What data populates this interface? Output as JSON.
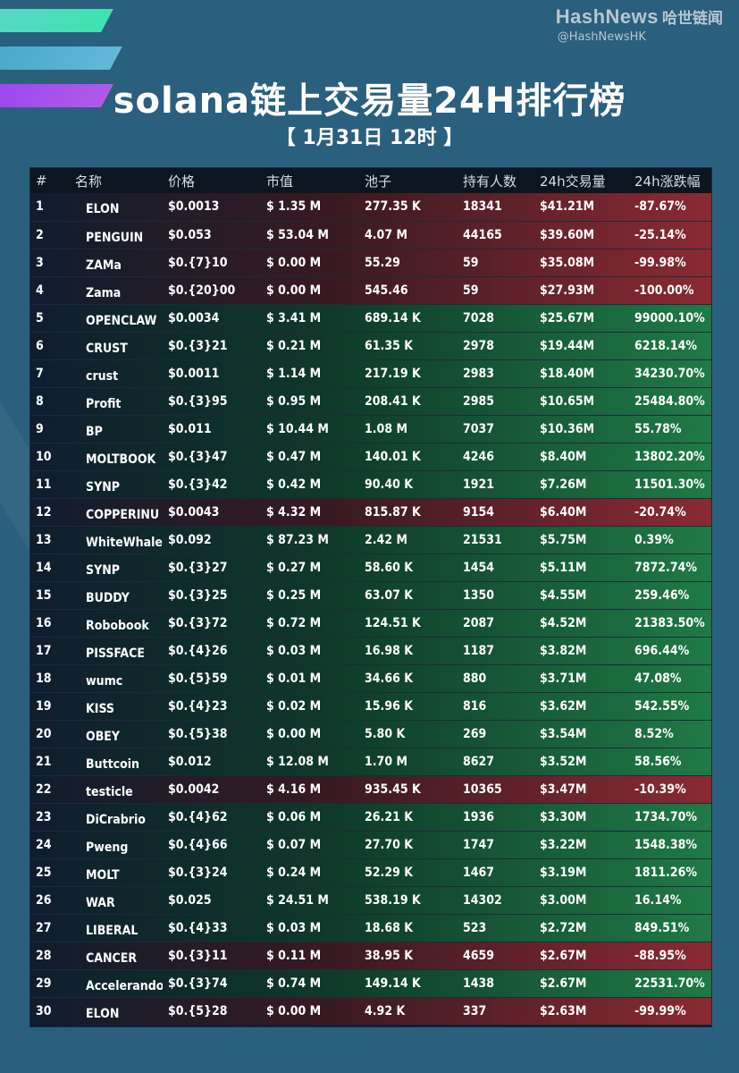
{
  "brand": {
    "name": "HashNews",
    "cn": "哈世链闻",
    "handle": "@HashNewsHK"
  },
  "title": "solana链上交易量24H排行榜",
  "subtitle": "【 1月31日  12时 】",
  "colors": {
    "background": "#2a5f7e",
    "table": "#0f1d2e",
    "down": "#8a2a33",
    "up": "#1f7a45"
  },
  "columns": [
    "#",
    "名称",
    "价格",
    "市值",
    "池子",
    "持有人数",
    "24h交易量",
    "24h涨跌幅"
  ],
  "rows": [
    {
      "rank": "1",
      "name": "ELON",
      "price": "$0.0013",
      "mcap": "$ 1.35 M",
      "pool": "277.35 K",
      "holders": "18341",
      "volume": "$41.21M",
      "change": "-87.67%",
      "dir": "down"
    },
    {
      "rank": "2",
      "name": "PENGUIN",
      "price": "$0.053",
      "mcap": "$ 53.04 M",
      "pool": "4.07 M",
      "holders": "44165",
      "volume": "$39.60M",
      "change": "-25.14%",
      "dir": "down"
    },
    {
      "rank": "3",
      "name": "ZAMa",
      "price": "$0.{7}10",
      "mcap": "$ 0.00 M",
      "pool": "55.29",
      "holders": "59",
      "volume": "$35.08M",
      "change": "-99.98%",
      "dir": "down"
    },
    {
      "rank": "4",
      "name": "Zama",
      "price": "$0.{20}00",
      "mcap": "$ 0.00 M",
      "pool": "545.46",
      "holders": "59",
      "volume": "$27.93M",
      "change": "-100.00%",
      "dir": "down"
    },
    {
      "rank": "5",
      "name": "OPENCLAW",
      "price": "$0.0034",
      "mcap": "$ 3.41 M",
      "pool": "689.14 K",
      "holders": "7028",
      "volume": "$25.67M",
      "change": "99000.10%",
      "dir": "up"
    },
    {
      "rank": "6",
      "name": "CRUST",
      "price": "$0.{3}21",
      "mcap": "$ 0.21 M",
      "pool": "61.35 K",
      "holders": "2978",
      "volume": "$19.44M",
      "change": "6218.14%",
      "dir": "up"
    },
    {
      "rank": "7",
      "name": "crust",
      "price": "$0.0011",
      "mcap": "$ 1.14 M",
      "pool": "217.19 K",
      "holders": "2983",
      "volume": "$18.40M",
      "change": "34230.70%",
      "dir": "up"
    },
    {
      "rank": "8",
      "name": "Profit",
      "price": "$0.{3}95",
      "mcap": "$ 0.95 M",
      "pool": "208.41 K",
      "holders": "2985",
      "volume": "$10.65M",
      "change": "25484.80%",
      "dir": "up"
    },
    {
      "rank": "9",
      "name": "BP",
      "price": "$0.011",
      "mcap": "$ 10.44 M",
      "pool": "1.08 M",
      "holders": "7037",
      "volume": "$10.36M",
      "change": "55.78%",
      "dir": "up"
    },
    {
      "rank": "10",
      "name": "MOLTBOOK",
      "price": "$0.{3}47",
      "mcap": "$ 0.47 M",
      "pool": "140.01 K",
      "holders": "4246",
      "volume": "$8.40M",
      "change": "13802.20%",
      "dir": "up"
    },
    {
      "rank": "11",
      "name": "SYNP",
      "price": "$0.{3}42",
      "mcap": "$ 0.42 M",
      "pool": "90.40 K",
      "holders": "1921",
      "volume": "$7.26M",
      "change": "11501.30%",
      "dir": "up"
    },
    {
      "rank": "12",
      "name": "COPPERINU",
      "price": "$0.0043",
      "mcap": "$ 4.32 M",
      "pool": "815.87 K",
      "holders": "9154",
      "volume": "$6.40M",
      "change": "-20.74%",
      "dir": "down"
    },
    {
      "rank": "13",
      "name": "WhiteWhale",
      "price": "$0.092",
      "mcap": "$ 87.23 M",
      "pool": "2.42 M",
      "holders": "21531",
      "volume": "$5.75M",
      "change": "0.39%",
      "dir": "up"
    },
    {
      "rank": "14",
      "name": "SYNP",
      "price": "$0.{3}27",
      "mcap": "$ 0.27 M",
      "pool": "58.60 K",
      "holders": "1454",
      "volume": "$5.11M",
      "change": "7872.74%",
      "dir": "up"
    },
    {
      "rank": "15",
      "name": "BUDDY",
      "price": "$0.{3}25",
      "mcap": "$ 0.25 M",
      "pool": "63.07 K",
      "holders": "1350",
      "volume": "$4.55M",
      "change": "259.46%",
      "dir": "up"
    },
    {
      "rank": "16",
      "name": "Robobook",
      "price": "$0.{3}72",
      "mcap": "$ 0.72 M",
      "pool": "124.51 K",
      "holders": "2087",
      "volume": "$4.52M",
      "change": "21383.50%",
      "dir": "up"
    },
    {
      "rank": "17",
      "name": "PISSFACE",
      "price": "$0.{4}26",
      "mcap": "$ 0.03 M",
      "pool": "16.98 K",
      "holders": "1187",
      "volume": "$3.82M",
      "change": "696.44%",
      "dir": "up"
    },
    {
      "rank": "18",
      "name": "wumc",
      "price": "$0.{5}59",
      "mcap": "$ 0.01 M",
      "pool": "34.66 K",
      "holders": "880",
      "volume": "$3.71M",
      "change": "47.08%",
      "dir": "up"
    },
    {
      "rank": "19",
      "name": "KISS",
      "price": "$0.{4}23",
      "mcap": "$ 0.02 M",
      "pool": "15.96 K",
      "holders": "816",
      "volume": "$3.62M",
      "change": "542.55%",
      "dir": "up"
    },
    {
      "rank": "20",
      "name": "OBEY",
      "price": "$0.{5}38",
      "mcap": "$ 0.00 M",
      "pool": "5.80 K",
      "holders": "269",
      "volume": "$3.54M",
      "change": "8.52%",
      "dir": "up"
    },
    {
      "rank": "21",
      "name": "Buttcoin",
      "price": "$0.012",
      "mcap": "$ 12.08 M",
      "pool": "1.70 M",
      "holders": "8627",
      "volume": "$3.52M",
      "change": "58.56%",
      "dir": "up"
    },
    {
      "rank": "22",
      "name": "testicle",
      "price": "$0.0042",
      "mcap": "$ 4.16 M",
      "pool": "935.45 K",
      "holders": "10365",
      "volume": "$3.47M",
      "change": "-10.39%",
      "dir": "down"
    },
    {
      "rank": "23",
      "name": "DiCrabrio",
      "price": "$0.{4}62",
      "mcap": "$ 0.06 M",
      "pool": "26.21 K",
      "holders": "1936",
      "volume": "$3.30M",
      "change": "1734.70%",
      "dir": "up"
    },
    {
      "rank": "24",
      "name": "Pweng",
      "price": "$0.{4}66",
      "mcap": "$ 0.07 M",
      "pool": "27.70 K",
      "holders": "1747",
      "volume": "$3.22M",
      "change": "1548.38%",
      "dir": "up"
    },
    {
      "rank": "25",
      "name": "MOLT",
      "price": "$0.{3}24",
      "mcap": "$ 0.24 M",
      "pool": "52.29 K",
      "holders": "1467",
      "volume": "$3.19M",
      "change": "1811.26%",
      "dir": "up"
    },
    {
      "rank": "26",
      "name": "WAR",
      "price": "$0.025",
      "mcap": "$ 24.51 M",
      "pool": "538.19 K",
      "holders": "14302",
      "volume": "$3.00M",
      "change": "16.14%",
      "dir": "up"
    },
    {
      "rank": "27",
      "name": "LIBERAL",
      "price": "$0.{4}33",
      "mcap": "$ 0.03 M",
      "pool": "18.68 K",
      "holders": "523",
      "volume": "$2.72M",
      "change": "849.51%",
      "dir": "up"
    },
    {
      "rank": "28",
      "name": "CANCER",
      "price": "$0.{3}11",
      "mcap": "$ 0.11 M",
      "pool": "38.95 K",
      "holders": "4659",
      "volume": "$2.67M",
      "change": "-88.95%",
      "dir": "down"
    },
    {
      "rank": "29",
      "name": "Accelerando",
      "price": "$0.{3}74",
      "mcap": "$ 0.74 M",
      "pool": "149.14 K",
      "holders": "1438",
      "volume": "$2.67M",
      "change": "22531.70%",
      "dir": "up"
    },
    {
      "rank": "30",
      "name": "ELON",
      "price": "$0.{5}28",
      "mcap": "$ 0.00 M",
      "pool": "4.92 K",
      "holders": "337",
      "volume": "$2.63M",
      "change": "-99.99%",
      "dir": "down"
    }
  ]
}
